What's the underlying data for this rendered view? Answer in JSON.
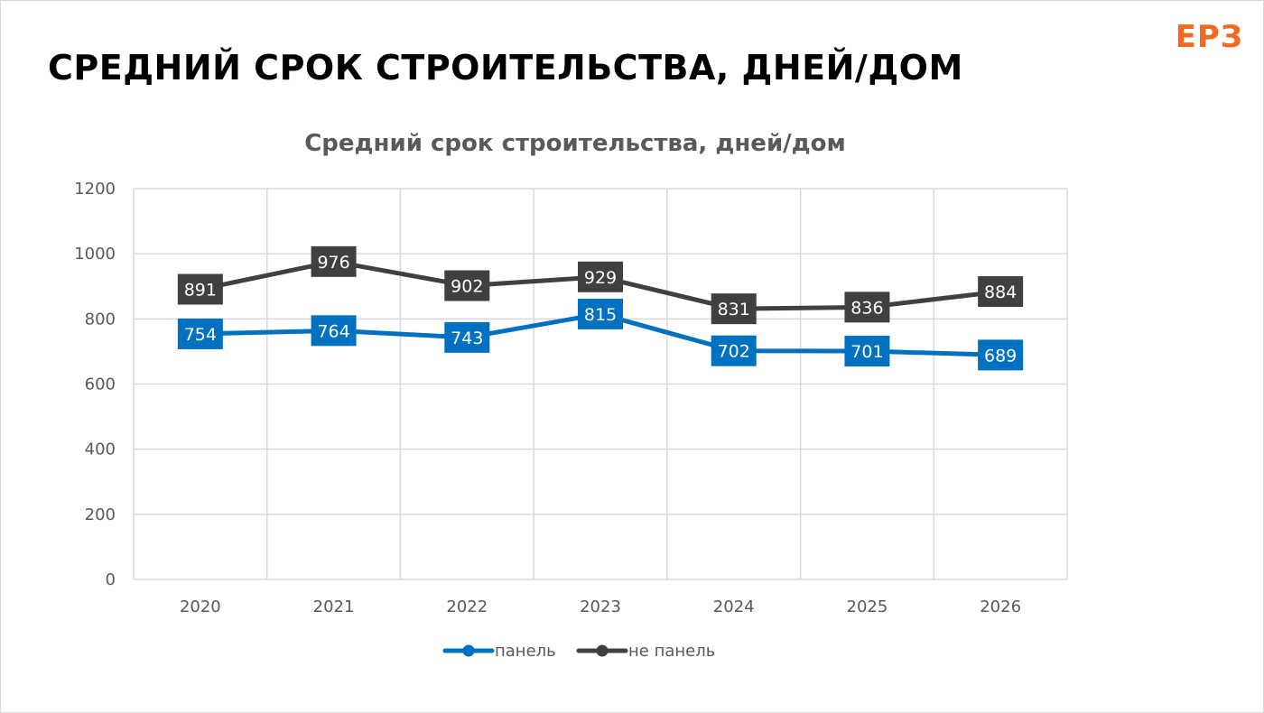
{
  "slide": {
    "title": "СРЕДНИЙ СРОК СТРОИТЕЛЬСТВА, ДНЕЙ/ДОМ",
    "logo": "ЕРЗ"
  },
  "colors": {
    "panel": "#0070c0",
    "not_panel": "#404040",
    "logo": "#f26a21",
    "grid": "#d9d9d9"
  },
  "chart_data": {
    "type": "line",
    "title": "Средний срок строительства, дней/дом",
    "categories": [
      "2020",
      "2021",
      "2022",
      "2023",
      "2024",
      "2025",
      "2026"
    ],
    "series": [
      {
        "name": "панель",
        "values": [
          754,
          764,
          743,
          815,
          702,
          701,
          689
        ],
        "color": "#0070c0"
      },
      {
        "name": "не панель",
        "values": [
          891,
          976,
          902,
          929,
          831,
          836,
          884
        ],
        "color": "#404040"
      }
    ],
    "yticks": [
      "0",
      "200",
      "400",
      "600",
      "800",
      "1000",
      "1200"
    ],
    "ylim": [
      0,
      1200
    ],
    "grid": true,
    "data_labels": true,
    "legend_position": "bottom"
  }
}
